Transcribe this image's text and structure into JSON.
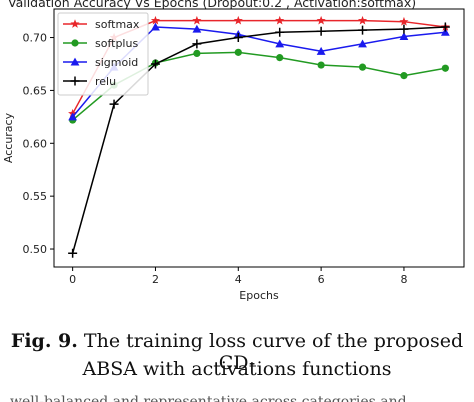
{
  "chart_data": {
    "type": "line",
    "title": "Validation Accuracy Vs Epochs (Dropout:0.2 , Activation:softmax)",
    "xlabel": "Epochs",
    "ylabel": "Accuracy",
    "x": [
      0,
      1,
      2,
      3,
      4,
      5,
      6,
      7,
      8,
      9
    ],
    "xlim": [
      -0.45,
      9.45
    ],
    "ylim": [
      0.483,
      0.727
    ],
    "xticks": [
      0,
      2,
      4,
      6,
      8
    ],
    "yticks": [
      0.5,
      0.55,
      0.6,
      0.65,
      0.7
    ],
    "grid": false,
    "legend_position": "top-left",
    "series": [
      {
        "name": "softmax",
        "color": "#e8262b",
        "marker": "star",
        "values": [
          0.628,
          0.7,
          0.716,
          0.716,
          0.716,
          0.716,
          0.716,
          0.716,
          0.715,
          0.71
        ]
      },
      {
        "name": "softplus",
        "color": "#229a22",
        "marker": "circle",
        "values": [
          0.622,
          0.655,
          0.676,
          0.685,
          0.686,
          0.681,
          0.674,
          0.672,
          0.664,
          0.671
        ]
      },
      {
        "name": "sigmoid",
        "color": "#1a1aee",
        "marker": "triangle",
        "values": [
          0.625,
          0.672,
          0.71,
          0.708,
          0.703,
          0.694,
          0.687,
          0.694,
          0.701,
          0.705
        ]
      },
      {
        "name": "relu",
        "color": "#000000",
        "marker": "plus",
        "values": [
          0.496,
          0.637,
          0.675,
          0.694,
          0.7,
          0.705,
          0.706,
          0.707,
          0.708,
          0.71
        ]
      }
    ]
  },
  "caption": {
    "label": "Fig. 9.",
    "line1": " The training loss curve of the proposed CD-",
    "line2": "ABSA with activations functions"
  },
  "cut_text": "well-balanced and representative across categories and domains"
}
